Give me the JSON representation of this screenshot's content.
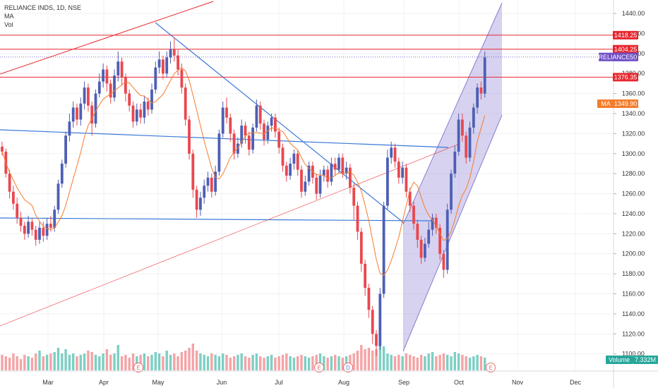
{
  "legend": {
    "symbol": "RELIANCE INDS, 1D, NSE",
    "ma": "MA",
    "vol": "Vol"
  },
  "colors": {
    "up": "#4e5fb4",
    "down": "#e8484f",
    "ma_line": "#f57c2a",
    "hline": "#e8262e",
    "trend_blue": "#3b78d8",
    "channel_fill": "#9c8fd6",
    "vol_up": "#7ccfc3",
    "vol_down": "#f5a3a5",
    "tag_price": "#6f4ec4",
    "tag_ma": "#f57c2a",
    "tag_volume": "#26a69a",
    "tag_level": "#e8262e"
  },
  "chart_data": {
    "type": "candlestick",
    "title": "RELIANCE INDS, 1D, NSE",
    "price_axis_ticks": [
      1100,
      1120,
      1140,
      1160,
      1180,
      1200,
      1220,
      1240,
      1260,
      1280,
      1300,
      1320,
      1340,
      1360,
      1380,
      1400,
      1420,
      1440
    ],
    "price_range": [
      1085,
      1452
    ],
    "x_labels": [
      "Mar",
      "Apr",
      "May",
      "Jun",
      "Jul",
      "Aug",
      "Sep",
      "Oct",
      "Nov",
      "Dec"
    ],
    "last_price": "1396.50",
    "symbol_tag": "RELIANCE",
    "ma_value": "1349.90",
    "ma_tag_label": "MA",
    "volume_label": "Volume",
    "volume_value": "7.332M",
    "horizontal_levels": [
      "1418.25",
      "1404.25",
      "1376.35"
    ],
    "event_markers": [
      {
        "label": "E",
        "date": "Apr 26"
      },
      {
        "label": "E",
        "date": "Jul 22"
      },
      {
        "label": "D",
        "date": "Aug 2"
      },
      {
        "label": "E",
        "date": "Oct 19"
      }
    ],
    "candles": [
      [
        1307,
        1302,
        1312,
        1298
      ],
      [
        1302,
        1280,
        1305,
        1276
      ],
      [
        1280,
        1262,
        1284,
        1255
      ],
      [
        1262,
        1250,
        1268,
        1244
      ],
      [
        1250,
        1236,
        1256,
        1230
      ],
      [
        1236,
        1228,
        1242,
        1222
      ],
      [
        1228,
        1220,
        1232,
        1214
      ],
      [
        1220,
        1232,
        1238,
        1216
      ],
      [
        1232,
        1224,
        1236,
        1218
      ],
      [
        1224,
        1214,
        1228,
        1208
      ],
      [
        1214,
        1226,
        1232,
        1210
      ],
      [
        1226,
        1218,
        1232,
        1212
      ],
      [
        1218,
        1230,
        1236,
        1214
      ],
      [
        1230,
        1226,
        1238,
        1222
      ],
      [
        1226,
        1244,
        1248,
        1222
      ],
      [
        1244,
        1270,
        1274,
        1240
      ],
      [
        1270,
        1290,
        1294,
        1266
      ],
      [
        1290,
        1318,
        1322,
        1286
      ],
      [
        1318,
        1332,
        1340,
        1312
      ],
      [
        1332,
        1346,
        1352,
        1326
      ],
      [
        1346,
        1334,
        1350,
        1328
      ],
      [
        1334,
        1350,
        1356,
        1328
      ],
      [
        1350,
        1366,
        1372,
        1344
      ],
      [
        1366,
        1348,
        1370,
        1342
      ],
      [
        1348,
        1330,
        1352,
        1318
      ],
      [
        1330,
        1360,
        1364,
        1326
      ],
      [
        1360,
        1372,
        1380,
        1356
      ],
      [
        1372,
        1384,
        1390,
        1366
      ],
      [
        1384,
        1370,
        1388,
        1362
      ],
      [
        1370,
        1356,
        1374,
        1350
      ],
      [
        1356,
        1378,
        1384,
        1352
      ],
      [
        1378,
        1392,
        1402,
        1372
      ],
      [
        1392,
        1376,
        1396,
        1368
      ],
      [
        1376,
        1360,
        1380,
        1352
      ],
      [
        1360,
        1348,
        1364,
        1342
      ],
      [
        1348,
        1332,
        1352,
        1326
      ],
      [
        1332,
        1344,
        1350,
        1328
      ],
      [
        1344,
        1336,
        1350,
        1330
      ],
      [
        1336,
        1352,
        1358,
        1330
      ],
      [
        1352,
        1344,
        1356,
        1338
      ],
      [
        1344,
        1364,
        1370,
        1340
      ],
      [
        1364,
        1386,
        1392,
        1360
      ],
      [
        1386,
        1394,
        1402,
        1380
      ],
      [
        1394,
        1380,
        1398,
        1374
      ],
      [
        1380,
        1396,
        1402,
        1376
      ],
      [
        1396,
        1404,
        1412,
        1390
      ],
      [
        1404,
        1398,
        1416,
        1392
      ],
      [
        1398,
        1384,
        1404,
        1378
      ],
      [
        1384,
        1366,
        1390,
        1360
      ],
      [
        1366,
        1334,
        1370,
        1328
      ],
      [
        1334,
        1300,
        1338,
        1294
      ],
      [
        1300,
        1264,
        1304,
        1256
      ],
      [
        1264,
        1244,
        1268,
        1236
      ],
      [
        1244,
        1256,
        1262,
        1238
      ],
      [
        1256,
        1268,
        1274,
        1250
      ],
      [
        1268,
        1276,
        1282,
        1262
      ],
      [
        1276,
        1262,
        1280,
        1256
      ],
      [
        1262,
        1282,
        1288,
        1258
      ],
      [
        1282,
        1320,
        1324,
        1278
      ],
      [
        1320,
        1346,
        1352,
        1316
      ],
      [
        1346,
        1336,
        1356,
        1330
      ],
      [
        1336,
        1320,
        1340,
        1312
      ],
      [
        1320,
        1300,
        1324,
        1294
      ],
      [
        1300,
        1310,
        1316,
        1296
      ],
      [
        1310,
        1328,
        1334,
        1306
      ],
      [
        1328,
        1318,
        1332,
        1310
      ],
      [
        1318,
        1304,
        1322,
        1298
      ],
      [
        1304,
        1326,
        1330,
        1300
      ],
      [
        1326,
        1348,
        1354,
        1322
      ],
      [
        1348,
        1330,
        1352,
        1324
      ],
      [
        1330,
        1314,
        1334,
        1308
      ],
      [
        1314,
        1328,
        1332,
        1310
      ],
      [
        1328,
        1336,
        1340,
        1322
      ],
      [
        1336,
        1322,
        1340,
        1316
      ],
      [
        1322,
        1306,
        1326,
        1300
      ],
      [
        1306,
        1288,
        1310,
        1282
      ],
      [
        1288,
        1278,
        1292,
        1272
      ],
      [
        1278,
        1290,
        1296,
        1274
      ],
      [
        1290,
        1300,
        1304,
        1284
      ],
      [
        1300,
        1284,
        1304,
        1278
      ],
      [
        1284,
        1262,
        1288,
        1256
      ],
      [
        1262,
        1272,
        1278,
        1258
      ],
      [
        1272,
        1288,
        1292,
        1268
      ],
      [
        1288,
        1276,
        1292,
        1270
      ],
      [
        1276,
        1260,
        1280,
        1254
      ],
      [
        1260,
        1278,
        1284,
        1256
      ],
      [
        1278,
        1284,
        1288,
        1272
      ],
      [
        1284,
        1272,
        1288,
        1266
      ],
      [
        1272,
        1290,
        1296,
        1268
      ],
      [
        1290,
        1284,
        1296,
        1278
      ],
      [
        1284,
        1296,
        1300,
        1280
      ],
      [
        1296,
        1280,
        1300,
        1276
      ],
      [
        1280,
        1286,
        1292,
        1274
      ],
      [
        1286,
        1266,
        1290,
        1260
      ],
      [
        1266,
        1248,
        1270,
        1234
      ],
      [
        1248,
        1222,
        1252,
        1214
      ],
      [
        1222,
        1190,
        1226,
        1182
      ],
      [
        1190,
        1166,
        1194,
        1158
      ],
      [
        1166,
        1144,
        1170,
        1136
      ],
      [
        1144,
        1120,
        1148,
        1110
      ],
      [
        1120,
        1108,
        1124,
        1098
      ],
      [
        1108,
        1160,
        1166,
        1104
      ],
      [
        1160,
        1248,
        1252,
        1156
      ],
      [
        1248,
        1296,
        1304,
        1244
      ],
      [
        1296,
        1306,
        1312,
        1290
      ],
      [
        1306,
        1292,
        1310,
        1286
      ],
      [
        1292,
        1276,
        1296,
        1270
      ],
      [
        1276,
        1286,
        1292,
        1270
      ],
      [
        1286,
        1262,
        1290,
        1256
      ],
      [
        1262,
        1248,
        1266,
        1242
      ],
      [
        1248,
        1230,
        1252,
        1224
      ],
      [
        1230,
        1214,
        1234,
        1206
      ],
      [
        1214,
        1196,
        1218,
        1190
      ],
      [
        1196,
        1210,
        1216,
        1192
      ],
      [
        1210,
        1224,
        1232,
        1206
      ],
      [
        1224,
        1236,
        1240,
        1218
      ],
      [
        1236,
        1226,
        1240,
        1220
      ],
      [
        1226,
        1200,
        1230,
        1194
      ],
      [
        1200,
        1184,
        1204,
        1176
      ],
      [
        1184,
        1244,
        1250,
        1180
      ],
      [
        1244,
        1280,
        1284,
        1240
      ],
      [
        1280,
        1302,
        1308,
        1276
      ],
      [
        1302,
        1334,
        1340,
        1298
      ],
      [
        1334,
        1318,
        1340,
        1312
      ],
      [
        1318,
        1296,
        1322,
        1290
      ],
      [
        1296,
        1326,
        1332,
        1292
      ],
      [
        1326,
        1346,
        1350,
        1320
      ],
      [
        1346,
        1366,
        1370,
        1340
      ],
      [
        1366,
        1360,
        1372,
        1354
      ],
      [
        1360,
        1396,
        1402,
        1356
      ]
    ],
    "volume": [
      0.55,
      0.5,
      0.45,
      0.6,
      0.5,
      0.4,
      0.55,
      0.5,
      0.45,
      0.6,
      0.7,
      0.5,
      0.55,
      0.6,
      0.65,
      0.8,
      0.6,
      0.75,
      0.55,
      0.6,
      0.5,
      0.55,
      0.6,
      0.7,
      0.65,
      0.55,
      0.5,
      0.6,
      0.75,
      0.55,
      0.6,
      0.9,
      0.5,
      0.55,
      0.45,
      0.6,
      0.5,
      0.55,
      0.6,
      0.5,
      0.55,
      0.65,
      0.6,
      0.5,
      0.7,
      0.55,
      0.6,
      0.5,
      0.65,
      0.7,
      0.8,
      0.95,
      0.7,
      0.6,
      0.55,
      0.5,
      0.6,
      0.55,
      0.5,
      0.6,
      0.55,
      0.45,
      0.5,
      0.55,
      0.6,
      0.5,
      0.45,
      0.55,
      0.6,
      0.5,
      0.45,
      0.5,
      0.55,
      0.45,
      0.5,
      0.55,
      0.6,
      0.5,
      0.45,
      0.5,
      0.55,
      0.5,
      0.45,
      0.5,
      0.55,
      0.6,
      0.5,
      0.45,
      0.5,
      0.55,
      0.5,
      0.45,
      0.5,
      0.55,
      0.6,
      0.7,
      0.9,
      0.75,
      0.8,
      0.7,
      0.75,
      1.0,
      0.85,
      0.6,
      0.55,
      0.5,
      0.55,
      0.5,
      0.6,
      0.55,
      0.5,
      0.45,
      0.55,
      0.5,
      0.6,
      0.65,
      0.5,
      0.55,
      0.6,
      0.55,
      0.5,
      0.65,
      0.6,
      0.55,
      0.5,
      0.45,
      0.5,
      0.55,
      0.5,
      0.45
    ]
  }
}
